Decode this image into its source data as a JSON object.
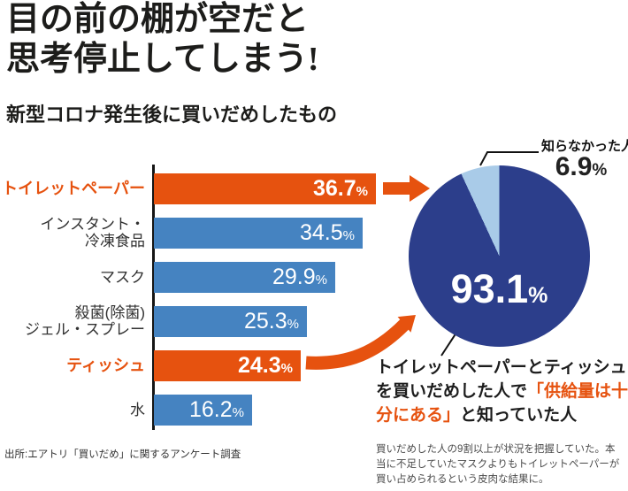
{
  "title": {
    "line1": "目の前の棚が空だと",
    "line2": "思考停止してしまう!"
  },
  "subtitle": "新型コロナ発生後に買いだめしたもの",
  "colors": {
    "orange": "#e6520f",
    "blue": "#4583c1",
    "navy": "#2c3e8b",
    "light_blue": "#a9cbe8"
  },
  "chart_data": [
    {
      "type": "bar",
      "orientation": "horizontal",
      "title": "新型コロナ発生後に買いだめしたもの",
      "unit": "%",
      "xlim": [
        0,
        40
      ],
      "grid": false,
      "categories": [
        "トイレットペーパー",
        "インスタント・冷凍食品",
        "マスク",
        "殺菌(除菌)ジェル・スプレー",
        "ティッシュ",
        "水"
      ],
      "values": [
        36.7,
        34.5,
        29.9,
        25.3,
        24.3,
        16.2
      ],
      "highlight_color": "#e6520f",
      "bar_color": "#4583c1",
      "items": [
        {
          "label_lines": [
            "トイレットペーパー"
          ],
          "value": 36.7,
          "display": "36.7",
          "highlight": true
        },
        {
          "label_lines": [
            "インスタント・",
            "冷凍食品"
          ],
          "value": 34.5,
          "display": "34.5",
          "highlight": false
        },
        {
          "label_lines": [
            "マスク"
          ],
          "value": 29.9,
          "display": "29.9",
          "highlight": false
        },
        {
          "label_lines": [
            "殺菌(除菌)",
            "ジェル・スプレー"
          ],
          "value": 25.3,
          "display": "25.3",
          "highlight": false
        },
        {
          "label_lines": [
            "ティッシュ"
          ],
          "value": 24.3,
          "display": "24.3",
          "highlight": true
        },
        {
          "label_lines": [
            "水"
          ],
          "value": 16.2,
          "display": "16.2",
          "highlight": false
        }
      ]
    },
    {
      "type": "pie",
      "slices": [
        {
          "value": 93.1,
          "color": "#2c3e8b"
        },
        {
          "label": "知らなかった人",
          "value": 6.9,
          "color": "#a9cbe8"
        }
      ],
      "center_label": {
        "num": "93.1",
        "pct": "%"
      },
      "callout": {
        "label": "知らなかった人",
        "num": "6.9",
        "pct": "%"
      }
    }
  ],
  "pie_caption": {
    "part1": "トイレットペーパーとティッシュを買いだめした人で",
    "highlight": "「供給量は十分にある」",
    "part3": "と知っていた人"
  },
  "source": "出所:エアトリ「買いだめ」に関するアンケート調査",
  "note": "買いだめした人の9割以上が状況を把握していた。本当に不足していたマスクよりもトイレットペーパーが買い占められるという皮肉な結果に。"
}
